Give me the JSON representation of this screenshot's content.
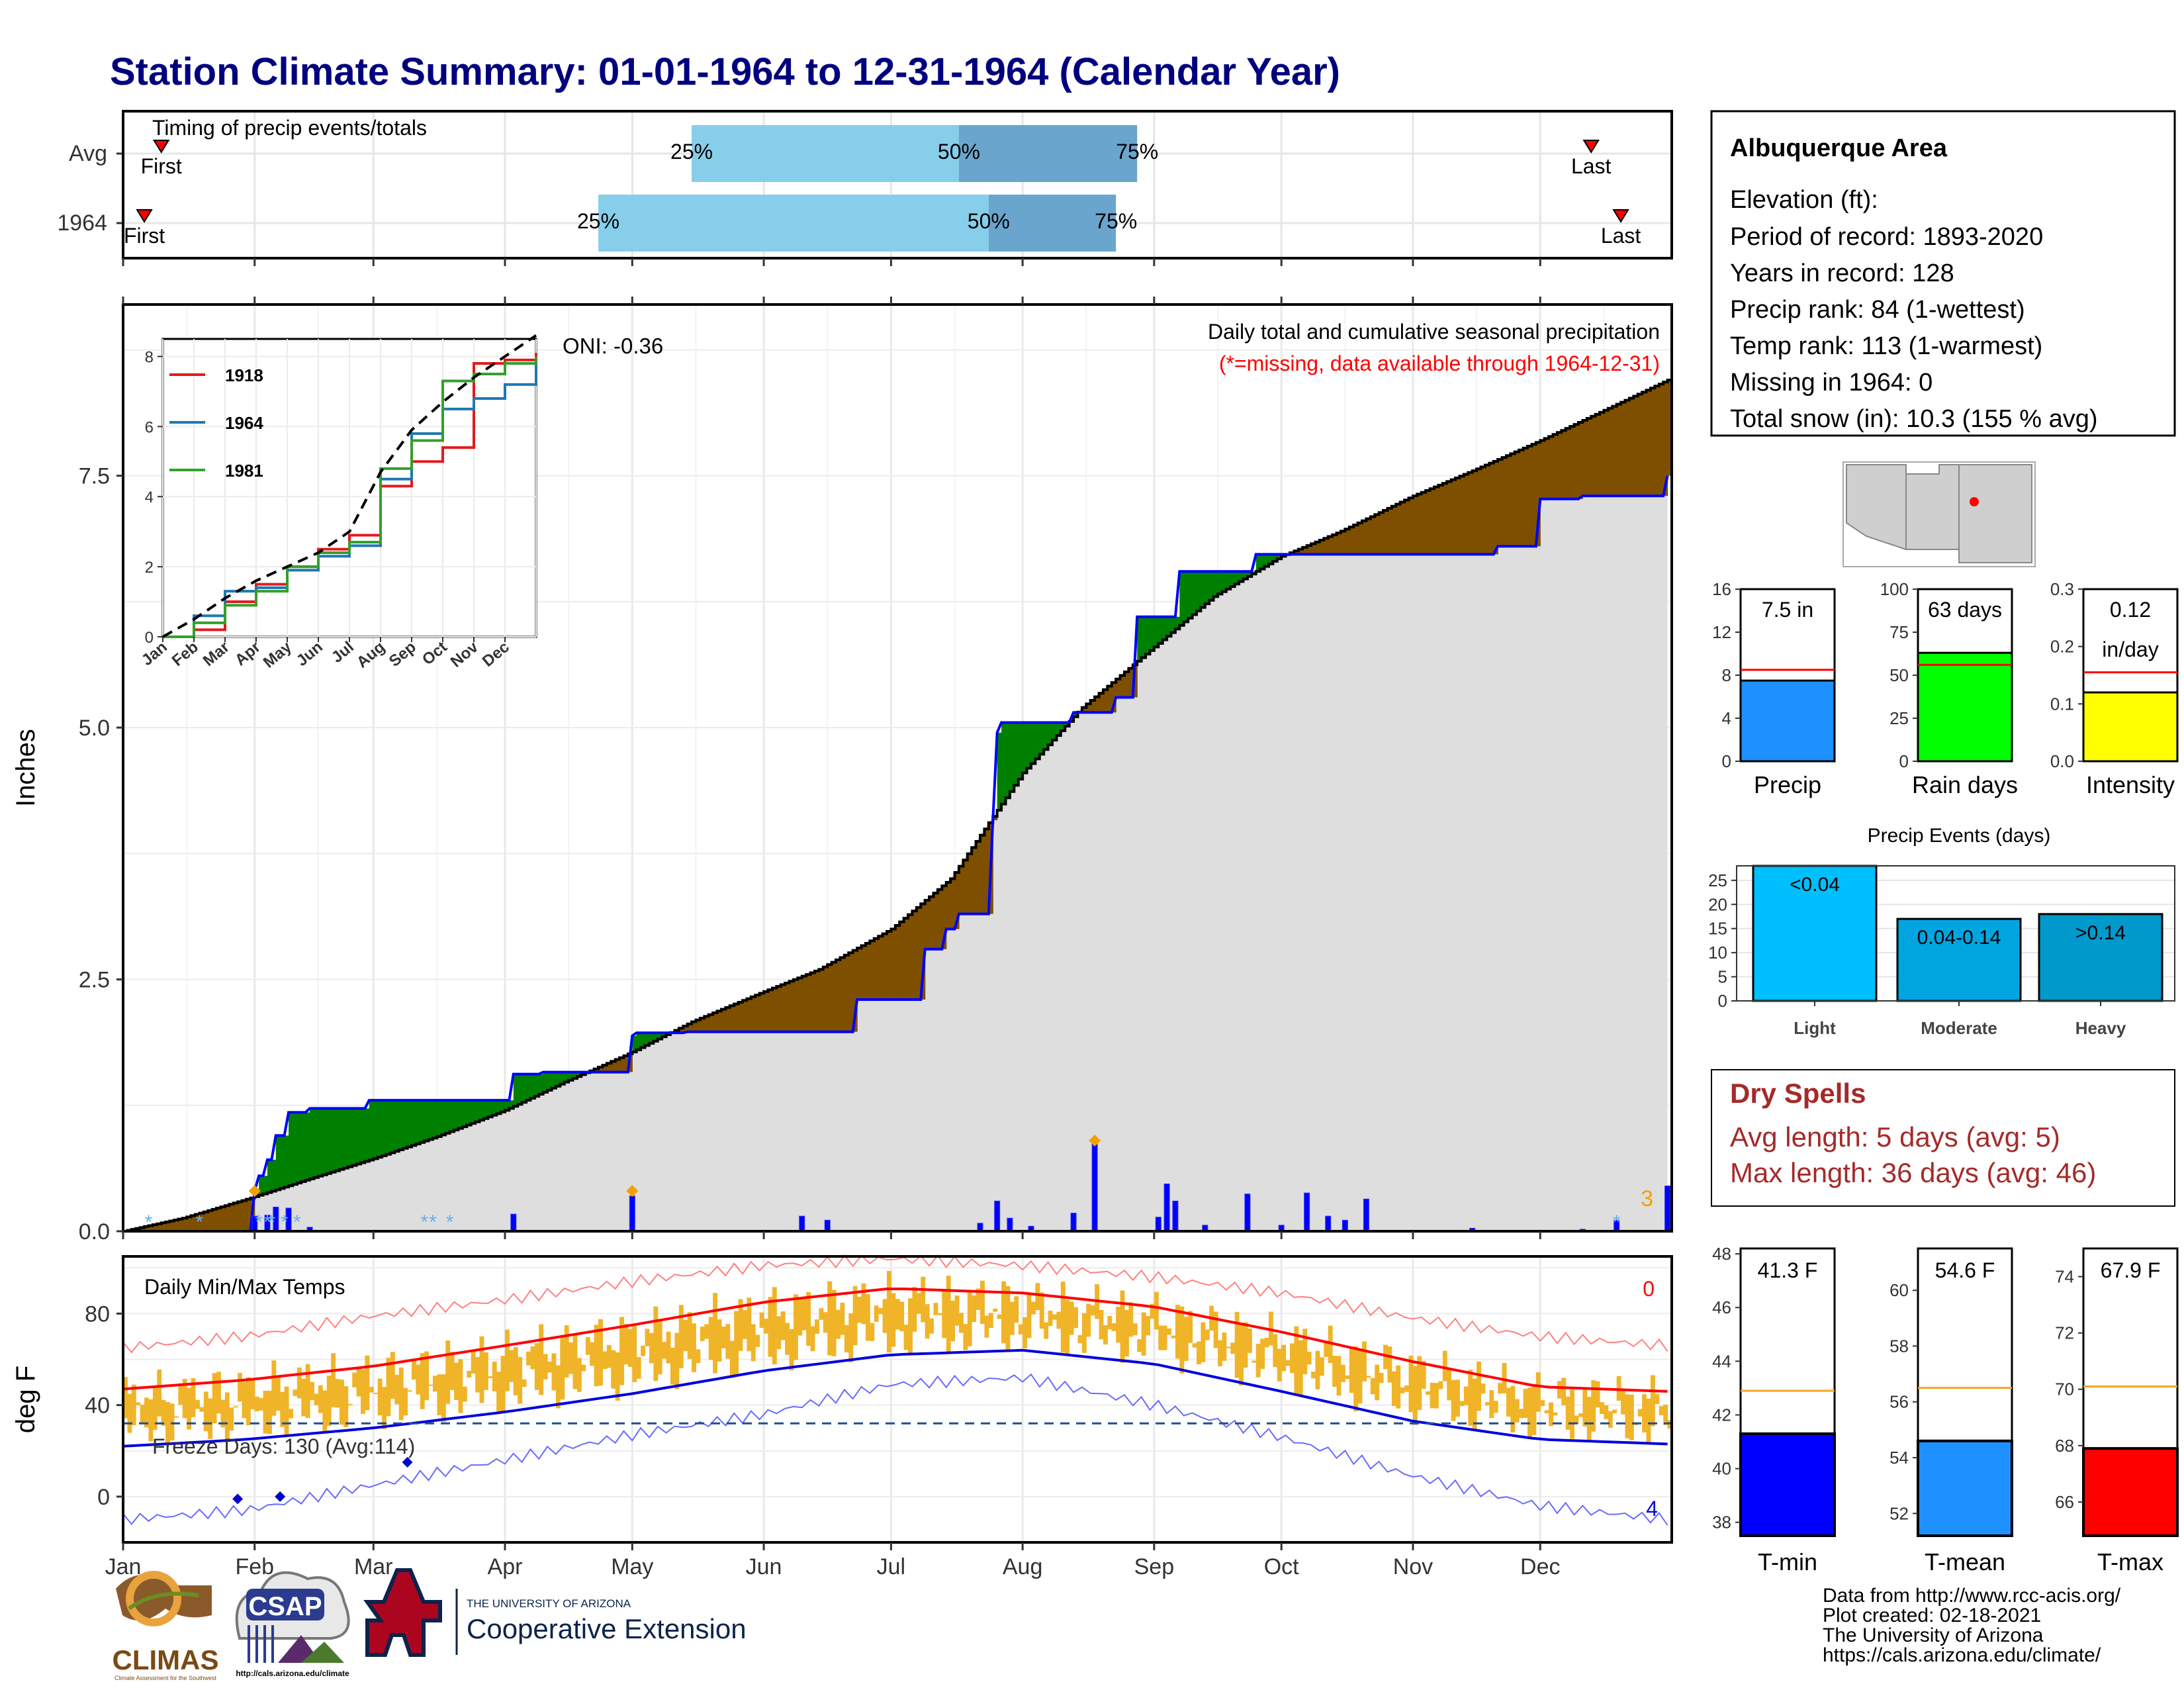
{
  "title": "Station Climate Summary: 01-01-1964 to 12-31-1964 (Calendar Year)",
  "months": [
    "Jan",
    "Feb",
    "Mar",
    "Apr",
    "May",
    "Jun",
    "Jul",
    "Aug",
    "Sep",
    "Oct",
    "Nov",
    "Dec"
  ],
  "timing": {
    "label": "Timing of precip events/totals",
    "rows": [
      {
        "name": "Avg",
        "first_doy": 10,
        "p25_doy": 135,
        "p50_doy": 198,
        "p75_doy": 240,
        "last_doy": 347
      },
      {
        "name": "1964",
        "first_doy": 6,
        "p25_doy": 113,
        "p50_doy": 205,
        "p75_doy": 235,
        "last_doy": 354
      }
    ],
    "first_label": "First",
    "last_label": "Last",
    "p25_label": "25%",
    "p50_label": "50%",
    "p75_label": "75%"
  },
  "precip": {
    "ylabel": "Inches",
    "yticks": [
      "0.0",
      "2.5",
      "5.0",
      "7.5"
    ],
    "ylim": [
      0,
      9.2
    ],
    "oni": "ONI: -0.36",
    "caption": "Daily total and cumulative seasonal precipitation",
    "caption_missing": "(*=missing, data available through 1964-12-31)",
    "corner_count": "3",
    "colors": {
      "wet": "#008000",
      "dry": "#7f4f00",
      "obs": "#0000ff",
      "area": "#dedede"
    },
    "chart_data": {
      "type": "area",
      "avg_cum": {
        "doy": [
          1,
          15,
          31,
          45,
          60,
          75,
          91,
          105,
          121,
          135,
          152,
          165,
          182,
          196,
          213,
          227,
          244,
          258,
          274,
          288,
          305,
          319,
          335,
          350,
          365
        ],
        "in": [
          0,
          0.13,
          0.33,
          0.52,
          0.72,
          0.94,
          1.2,
          1.48,
          1.78,
          2.08,
          2.38,
          2.6,
          3.0,
          3.5,
          4.55,
          5.2,
          5.8,
          6.3,
          6.7,
          6.95,
          7.3,
          7.55,
          7.85,
          8.15,
          8.45
        ]
      },
      "obs_cum": {
        "doy": [
          1,
          32,
          33,
          35,
          37,
          40,
          45,
          59,
          75,
          93,
          100,
          121,
          122,
          134,
          174,
          189,
          190,
          195,
          198,
          206,
          207,
          208,
          218,
          225,
          235,
          240,
          250,
          268,
          279,
          325,
          334,
          335,
          345,
          365
        ],
        "in": [
          0,
          0.4,
          0.55,
          0.71,
          0.95,
          1.18,
          1.22,
          1.3,
          1.3,
          1.56,
          1.58,
          1.94,
          1.97,
          1.98,
          2.3,
          2.3,
          2.8,
          3.0,
          3.15,
          4.08,
          4.95,
          5.05,
          5.05,
          5.15,
          5.3,
          6.1,
          6.55,
          6.72,
          6.72,
          6.8,
          6.8,
          7.27,
          7.3,
          7.5
        ]
      },
      "daily_bars": [
        {
          "doy": 32,
          "in": 0.15
        },
        {
          "doy": 35,
          "in": 0.16
        },
        {
          "doy": 37,
          "in": 0.24
        },
        {
          "doy": 40,
          "in": 0.23
        },
        {
          "doy": 45,
          "in": 0.04
        },
        {
          "doy": 93,
          "in": 0.17
        },
        {
          "doy": 121,
          "in": 0.35
        },
        {
          "doy": 161,
          "in": 0.15
        },
        {
          "doy": 167,
          "in": 0.11
        },
        {
          "doy": 203,
          "in": 0.08
        },
        {
          "doy": 207,
          "in": 0.3
        },
        {
          "doy": 210,
          "in": 0.13
        },
        {
          "doy": 215,
          "in": 0.05
        },
        {
          "doy": 225,
          "in": 0.18
        },
        {
          "doy": 230,
          "in": 0.9
        },
        {
          "doy": 245,
          "in": 0.14
        },
        {
          "doy": 247,
          "in": 0.47
        },
        {
          "doy": 249,
          "in": 0.3
        },
        {
          "doy": 256,
          "in": 0.06
        },
        {
          "doy": 266,
          "in": 0.37
        },
        {
          "doy": 274,
          "in": 0.06
        },
        {
          "doy": 280,
          "in": 0.38
        },
        {
          "doy": 285,
          "in": 0.15
        },
        {
          "doy": 289,
          "in": 0.11
        },
        {
          "doy": 294,
          "in": 0.32
        },
        {
          "doy": 319,
          "in": 0.03
        },
        {
          "doy": 345,
          "in": 0.02
        },
        {
          "doy": 353,
          "in": 0.11
        },
        {
          "doy": 365,
          "in": 0.45
        }
      ],
      "snow_marks_doy": [
        7,
        19,
        33,
        35,
        36,
        39,
        42,
        72,
        74,
        78,
        353
      ],
      "diamond_marks": [
        {
          "doy": 32,
          "in": 0.4
        },
        {
          "doy": 121,
          "in": 0.4
        },
        {
          "doy": 230,
          "in": 0.9
        }
      ]
    }
  },
  "inset": {
    "yticks": [
      "0",
      "2",
      "4",
      "6",
      "8"
    ],
    "ylim": [
      0,
      8.5
    ],
    "legend": [
      {
        "name": "1918",
        "color": "#e31a1c"
      },
      {
        "name": "1964",
        "color": "#1f78b4"
      },
      {
        "name": "1981",
        "color": "#33a02c"
      }
    ],
    "chart_data": {
      "type": "line",
      "x_months": [
        1,
        2,
        3,
        4,
        5,
        6,
        7,
        8,
        9,
        10,
        11,
        12,
        13
      ],
      "avg": [
        0,
        0.5,
        1.1,
        1.6,
        2.0,
        2.4,
        3.0,
        4.7,
        5.9,
        6.7,
        7.4,
        8.0,
        8.6
      ],
      "1918": [
        0,
        0.2,
        1.0,
        1.5,
        2.0,
        2.5,
        2.9,
        4.3,
        5.0,
        5.4,
        7.8,
        7.9,
        8.1
      ],
      "1964": [
        0,
        0.6,
        1.3,
        1.4,
        1.9,
        2.3,
        2.6,
        4.5,
        5.8,
        6.5,
        6.8,
        7.2,
        7.9
      ],
      "1981": [
        0,
        0.4,
        0.9,
        1.3,
        2.0,
        2.4,
        2.7,
        4.8,
        5.6,
        7.3,
        7.5,
        7.8,
        8.0
      ]
    }
  },
  "temps": {
    "ylabel": "deg F",
    "yticks": [
      "0",
      "40",
      "80"
    ],
    "ylim": [
      -20,
      105
    ],
    "label": "Daily Min/Max Temps",
    "freeze": "Freeze Days: 130 (Avg:114)",
    "corner_top": "0",
    "corner_bottom": "4",
    "freeze_line_f": 32,
    "colors": {
      "range": "#f0b429",
      "avg_max": "#ff0000",
      "avg_min": "#0000e0",
      "rec_max": "#ff8080",
      "rec_min": "#6a6aff"
    },
    "chart_data": {
      "type": "line",
      "doy": [
        1,
        30,
        60,
        91,
        121,
        152,
        182,
        213,
        244,
        274,
        305,
        335,
        365
      ],
      "avg_max": [
        47,
        51,
        57,
        66,
        75,
        85,
        91,
        89,
        83,
        72,
        59,
        48,
        46
      ],
      "avg_min": [
        22,
        25,
        30,
        37,
        45,
        55,
        62,
        64,
        58,
        46,
        33,
        25,
        23
      ],
      "rec_max": [
        65,
        70,
        79,
        86,
        94,
        101,
        104,
        101,
        96,
        89,
        78,
        70,
        66
      ],
      "rec_min": [
        -10,
        -6,
        5,
        16,
        27,
        36,
        49,
        52,
        40,
        26,
        9,
        -4,
        -10
      ],
      "cold_marks": [
        {
          "doy": 28,
          "f": -1
        },
        {
          "doy": 38,
          "f": 0
        },
        {
          "doy": 68,
          "f": 15
        }
      ]
    }
  },
  "info": {
    "station": "Albuquerque Area",
    "lines": [
      "Elevation (ft):",
      "Period of record: 1893-2020",
      "Years in record: 128",
      "Precip rank: 84 (1-wettest)",
      "Temp rank: 113 (1-warmest)",
      "Missing in 1964: 0",
      "Total snow (in): 10.3 (155 % avg)"
    ]
  },
  "mini_bars": [
    {
      "label": "Precip",
      "value_label": "7.5 in",
      "value_label2": "",
      "value": 7.5,
      "avg": 8.5,
      "ylim": [
        0,
        16
      ],
      "ticks": [
        "0",
        "4",
        "8",
        "12",
        "16"
      ],
      "tick_vals": [
        0,
        4,
        8,
        12,
        16
      ],
      "color": "#1e90ff"
    },
    {
      "label": "Rain days",
      "value_label": "63 days",
      "value_label2": "",
      "value": 63,
      "avg": 56,
      "ylim": [
        0,
        100
      ],
      "ticks": [
        "0",
        "25",
        "50",
        "75",
        "100"
      ],
      "tick_vals": [
        0,
        25,
        50,
        75,
        100
      ],
      "color": "#00ff00"
    },
    {
      "label": "Intensity",
      "value_label": "0.12",
      "value_label2": "in/day",
      "value": 0.12,
      "avg": 0.155,
      "ylim": [
        0,
        0.3
      ],
      "ticks": [
        "0.0",
        "0.1",
        "0.2",
        "0.3"
      ],
      "tick_vals": [
        0,
        0.1,
        0.2,
        0.3
      ],
      "color": "#ffff00"
    }
  ],
  "events": {
    "title": "Precip Events (days)",
    "yticks": [
      "0",
      "5",
      "10",
      "15",
      "20",
      "25"
    ],
    "ylim": [
      0,
      28
    ],
    "chart_data": {
      "type": "bar",
      "categories": [
        "Light",
        "Moderate",
        "Heavy"
      ],
      "bar_labels": [
        "<0.04",
        "0.04-0.14",
        ">0.14"
      ],
      "values": [
        28,
        17,
        18
      ],
      "colors": [
        "#00bfff",
        "#00a5e0",
        "#0099cc"
      ]
    }
  },
  "dry": {
    "title": "Dry Spells",
    "avg_line": "Avg length: 5 days (avg: 5)",
    "max_line": "Max length: 36 days (avg: 46)"
  },
  "temp_bars": [
    {
      "label": "T-min",
      "value_label": "41.3 F",
      "value": 41.3,
      "avg": 42.9,
      "ylim": [
        37.5,
        48.2
      ],
      "ticks": [
        "38",
        "40",
        "42",
        "44",
        "46",
        "48"
      ],
      "tick_vals": [
        38,
        40,
        42,
        44,
        46,
        48
      ],
      "color": "#0000ff"
    },
    {
      "label": "T-mean",
      "value_label": "54.6 F",
      "value": 54.6,
      "avg": 56.5,
      "ylim": [
        51.2,
        61.5
      ],
      "ticks": [
        "52",
        "54",
        "56",
        "58",
        "60"
      ],
      "tick_vals": [
        52,
        54,
        56,
        58,
        60
      ],
      "color": "#1e90ff"
    },
    {
      "label": "T-max",
      "value_label": "67.9 F",
      "value": 67.9,
      "avg": 70.1,
      "ylim": [
        64.8,
        75.0
      ],
      "ticks": [
        "66",
        "68",
        "70",
        "72",
        "74"
      ],
      "tick_vals": [
        66,
        68,
        70,
        72,
        74
      ],
      "color": "#ff0000"
    }
  ],
  "footer": {
    "lines": [
      "Data from http://www.rcc-acis.org/",
      "Plot created: 02-18-2021",
      "The University of Arizona",
      "https://cals.arizona.edu/climate/"
    ],
    "logos": {
      "climas": "CLIMAS",
      "climas_sub": "Climate Assessment for the Southwest",
      "csap": "CSAP",
      "csap_url": "http://cals.arizona.edu/climate",
      "uofa_small": "THE UNIVERSITY OF ARIZONA",
      "coop": "Cooperative Extension"
    }
  }
}
